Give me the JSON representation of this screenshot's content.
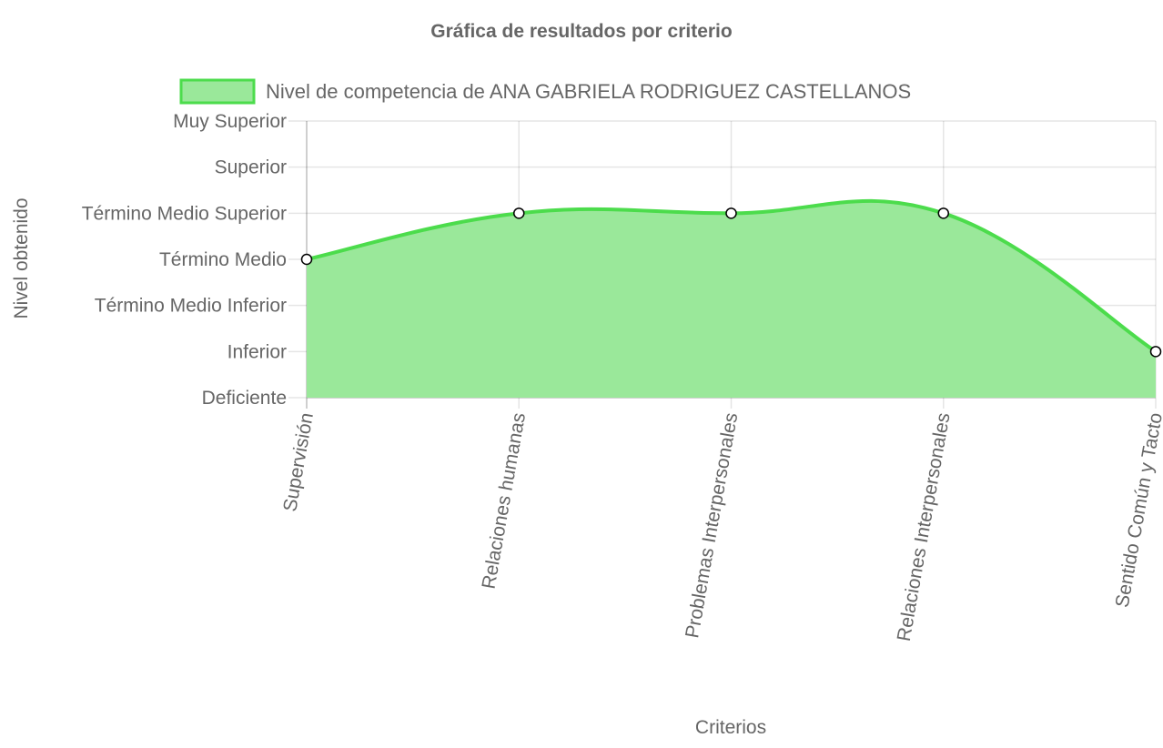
{
  "chart_data": {
    "type": "area",
    "title": "Gráfica de resultados por criterio",
    "xlabel": "Criterios",
    "ylabel": "Nivel obtenido",
    "categories": [
      "Supervisión",
      "Relaciones humanas",
      "Problemas Interpersonales",
      "Relaciones Interpersonales",
      "Sentido Común y Tacto"
    ],
    "y_levels": [
      "Deficiente",
      "Inferior",
      "Término Medio Inferior",
      "Término Medio",
      "Término Medio Superior",
      "Superior",
      "Muy Superior"
    ],
    "ylim": [
      0,
      6
    ],
    "grid": true,
    "legend_position": "top",
    "series": [
      {
        "name": "Nivel de competencia de ANA GABRIELA RODRIGUEZ CASTELLANOS",
        "values": [
          3,
          4,
          4,
          4,
          1
        ],
        "value_labels": [
          "Término Medio",
          "Término Medio Superior",
          "Término Medio Superior",
          "Término Medio Superior",
          "Inferior"
        ],
        "line_color": "#4cdc4c",
        "fill_color": "#9ae89a"
      }
    ]
  }
}
